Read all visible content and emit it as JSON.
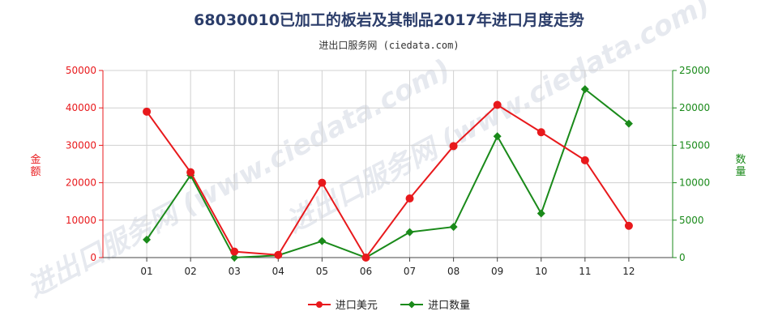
{
  "title": "68030010已加工的板岩及其制品2017年进口月度走势",
  "subtitle": "进出口服务网 (ciedata.com)",
  "watermark": "进出口服务网 (www.ciedata.com)",
  "colors": {
    "amount": "#e8191c",
    "quantity": "#1a8a1a",
    "title": "#2b3d6a",
    "grid": "#d0d0d0"
  },
  "chart_data": {
    "type": "line",
    "categories": [
      "01",
      "02",
      "03",
      "04",
      "05",
      "06",
      "07",
      "08",
      "09",
      "10",
      "11",
      "12"
    ],
    "left_axis": {
      "label": "金额",
      "ylim": [
        0,
        50000
      ],
      "ticks": [
        "0",
        "10000",
        "20000",
        "30000",
        "40000",
        "50000"
      ]
    },
    "right_axis": {
      "label": "数量",
      "ylim": [
        0,
        25000
      ],
      "ticks": [
        "0",
        "5000",
        "10000",
        "15000",
        "20000",
        "25000"
      ]
    },
    "series": [
      {
        "name": "进口美元",
        "axis": "left",
        "marker": "circle",
        "values": [
          39000,
          22800,
          1600,
          700,
          20000,
          0,
          15800,
          29800,
          40800,
          33500,
          26000,
          8500
        ]
      },
      {
        "name": "进口数量",
        "axis": "right",
        "marker": "diamond",
        "values": [
          2400,
          11000,
          0,
          300,
          2200,
          0,
          3400,
          4100,
          16200,
          5900,
          22500,
          17900
        ]
      }
    ],
    "grid": true,
    "legend_position": "bottom"
  }
}
